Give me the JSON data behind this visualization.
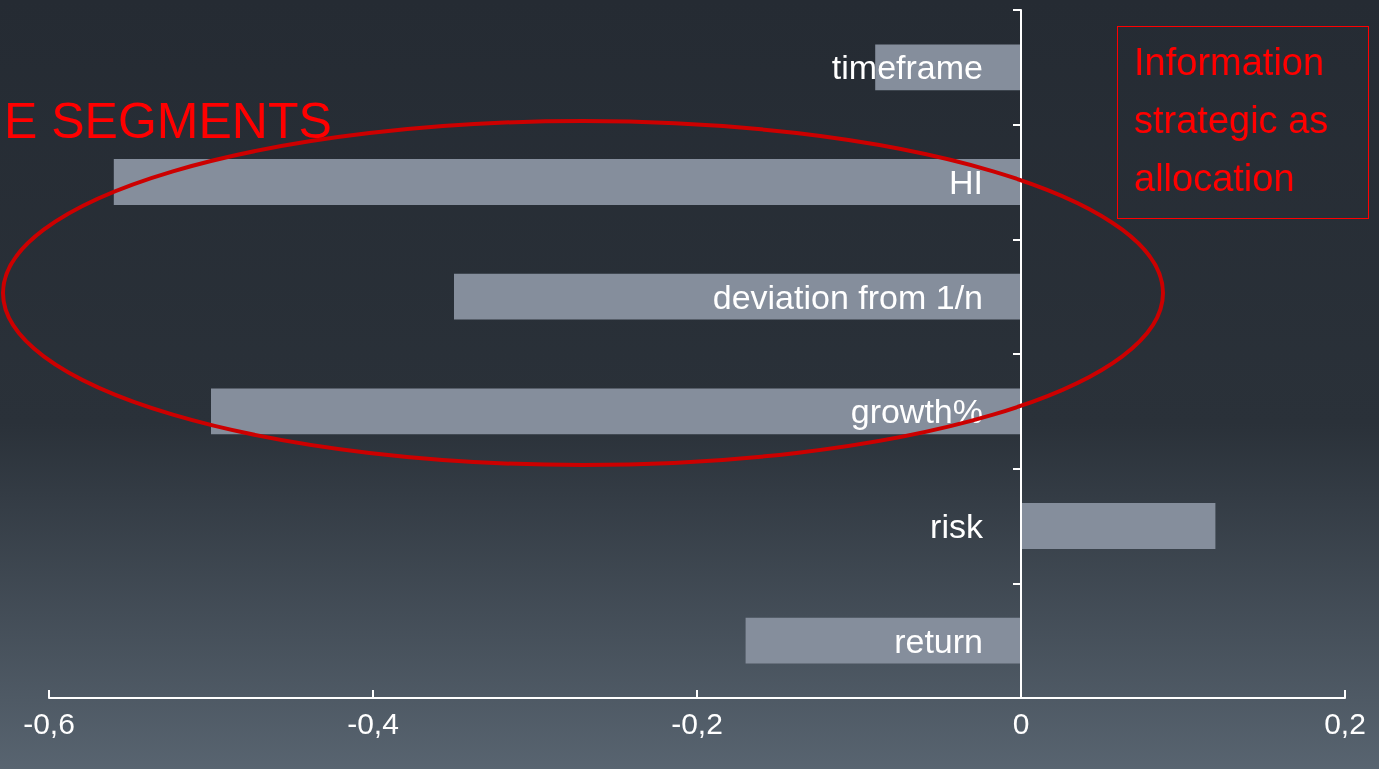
{
  "chart_data": {
    "type": "bar",
    "orientation": "horizontal",
    "categories": [
      "timeframe",
      "HI",
      "deviation from 1/n",
      "growth%",
      "risk",
      "return"
    ],
    "values": [
      -0.09,
      -0.56,
      -0.35,
      -0.5,
      0.12,
      -0.17
    ],
    "color": "#858e9c",
    "xlim": [
      -0.6,
      0.2
    ],
    "xticks": [
      {
        "value": -0.6,
        "label": "-0,6"
      },
      {
        "value": -0.4,
        "label": "-0,4"
      },
      {
        "value": -0.2,
        "label": "-0,2"
      },
      {
        "value": 0,
        "label": "0"
      },
      {
        "value": 0.2,
        "label": "0,2"
      }
    ],
    "grid": false,
    "annotations": [
      "E SEGMENTS",
      "Information\nstrategic as\nallocation"
    ]
  }
}
